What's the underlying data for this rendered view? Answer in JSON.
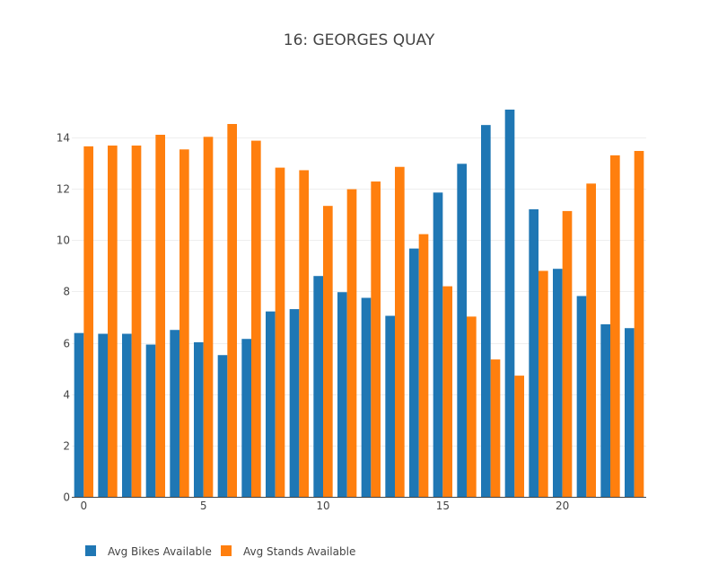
{
  "chart_data": {
    "type": "bar",
    "title": "16: GEORGES QUAY",
    "xlabel": "",
    "ylabel": "",
    "x": [
      0,
      1,
      2,
      3,
      4,
      5,
      6,
      7,
      8,
      9,
      10,
      11,
      12,
      13,
      14,
      15,
      16,
      17,
      18,
      19,
      20,
      21,
      22,
      23
    ],
    "xticks": [
      0,
      5,
      10,
      15,
      20
    ],
    "xlim": [
      -0.5,
      23.5
    ],
    "yticks": [
      0,
      2,
      4,
      6,
      8,
      10,
      12,
      14
    ],
    "ylim": [
      0,
      15.5
    ],
    "grid": true,
    "legend_position": "bottom-left",
    "series": [
      {
        "name": "Avg Bikes Available",
        "color": "#1f77b4",
        "values": [
          6.38,
          6.35,
          6.35,
          5.93,
          6.5,
          6.02,
          5.52,
          6.15,
          7.22,
          7.31,
          8.6,
          7.97,
          7.75,
          7.05,
          9.67,
          11.85,
          12.97,
          14.48,
          15.08,
          11.2,
          8.88,
          7.82,
          6.72,
          6.57
        ]
      },
      {
        "name": "Avg Stands Available",
        "color": "#ff7f0e",
        "values": [
          13.65,
          13.68,
          13.68,
          14.1,
          13.53,
          14.02,
          14.52,
          13.87,
          12.82,
          12.72,
          11.33,
          11.98,
          12.28,
          12.85,
          10.23,
          8.2,
          7.02,
          5.35,
          4.72,
          8.8,
          11.13,
          12.2,
          13.3,
          13.47
        ]
      }
    ]
  }
}
